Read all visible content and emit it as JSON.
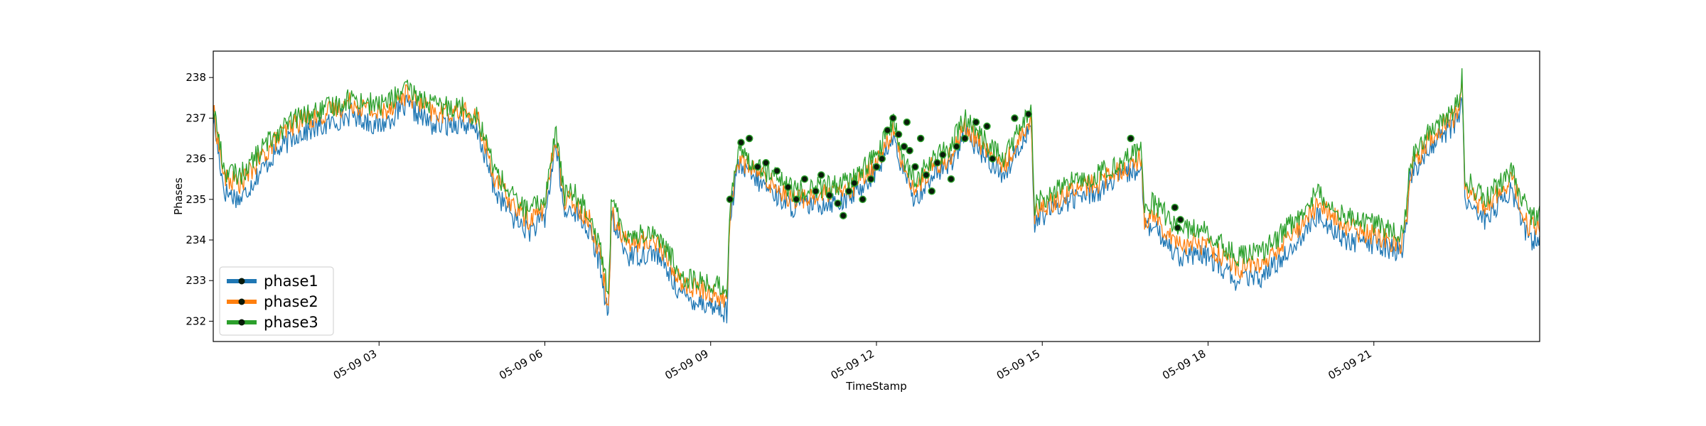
{
  "chart_data": {
    "type": "line",
    "title": "",
    "xlabel": "TimeStamp",
    "ylabel": "Phases",
    "ylim": [
      231.5,
      238.65
    ],
    "xlim_hours": [
      0,
      24
    ],
    "x_tick_hours": [
      3,
      6,
      9,
      12,
      15,
      18,
      21
    ],
    "x_tick_labels": [
      "05-09 03",
      "05-09 06",
      "05-09 09",
      "05-09 12",
      "05-09 15",
      "05-09 18",
      "05-09 21"
    ],
    "y_ticks": [
      232,
      233,
      234,
      235,
      236,
      237,
      238
    ],
    "grid": false,
    "legend_position": "lower-left",
    "x_unit": "hour of day (05-09)",
    "series": [
      {
        "name": "phase1",
        "color": "#1f77b4",
        "x": [
          0,
          0.2,
          0.5,
          0.8,
          1.1,
          1.5,
          2.0,
          2.5,
          3.0,
          3.5,
          4.0,
          4.5,
          4.8,
          5.1,
          5.4,
          5.7,
          6.0,
          6.2,
          6.35,
          6.5,
          6.8,
          7.0,
          7.1,
          7.15,
          7.2,
          7.5,
          8.0,
          8.5,
          9.0,
          9.3,
          9.35,
          9.5,
          10.0,
          10.5,
          11.0,
          11.5,
          12.0,
          12.3,
          12.5,
          12.7,
          13.0,
          13.3,
          13.6,
          14.0,
          14.3,
          14.7,
          14.8,
          14.85,
          15.0,
          15.5,
          16.0,
          16.5,
          16.8,
          16.85,
          17.0,
          17.5,
          18.0,
          18.5,
          19.0,
          19.5,
          20.0,
          20.5,
          21.0,
          21.5,
          21.6,
          21.65,
          22.0,
          22.5,
          22.6,
          22.65,
          23.0,
          23.5,
          23.8,
          24.0
        ],
        "y": [
          237.0,
          235.2,
          235.0,
          235.6,
          236.1,
          236.6,
          236.8,
          237.1,
          236.8,
          237.3,
          236.8,
          236.9,
          236.6,
          235.2,
          234.6,
          234.2,
          234.5,
          236.4,
          234.6,
          234.8,
          234.2,
          233.4,
          232.5,
          232.0,
          234.5,
          233.6,
          233.7,
          232.6,
          232.4,
          232.2,
          234.6,
          235.8,
          235.3,
          234.8,
          234.9,
          235.0,
          235.7,
          236.5,
          235.6,
          235.0,
          235.6,
          235.8,
          236.6,
          236.0,
          235.6,
          236.6,
          236.9,
          234.4,
          234.6,
          235.0,
          235.2,
          235.6,
          235.8,
          234.3,
          234.3,
          233.6,
          233.6,
          233.0,
          233.1,
          233.8,
          234.6,
          234.0,
          233.9,
          233.7,
          234.5,
          235.5,
          236.3,
          236.9,
          237.5,
          235.0,
          234.5,
          235.2,
          234.0,
          234.0
        ]
      },
      {
        "name": "phase2",
        "color": "#ff7f0e",
        "x": [
          0,
          0.2,
          0.5,
          0.8,
          1.1,
          1.5,
          2.0,
          2.5,
          3.0,
          3.5,
          4.0,
          4.5,
          4.8,
          5.1,
          5.4,
          5.7,
          6.0,
          6.2,
          6.35,
          6.5,
          6.8,
          7.0,
          7.1,
          7.15,
          7.2,
          7.5,
          8.0,
          8.5,
          9.0,
          9.3,
          9.35,
          9.5,
          10.0,
          10.5,
          11.0,
          11.5,
          12.0,
          12.3,
          12.5,
          12.7,
          13.0,
          13.3,
          13.6,
          14.0,
          14.3,
          14.7,
          14.8,
          14.85,
          15.0,
          15.5,
          16.0,
          16.5,
          16.8,
          16.85,
          17.0,
          17.5,
          18.0,
          18.5,
          19.0,
          19.5,
          20.0,
          20.5,
          21.0,
          21.5,
          21.6,
          21.65,
          22.0,
          22.5,
          22.6,
          22.65,
          23.0,
          23.5,
          23.8,
          24.0
        ],
        "y": [
          237.2,
          235.5,
          235.4,
          235.9,
          236.4,
          236.9,
          237.1,
          237.4,
          237.1,
          237.6,
          237.1,
          237.2,
          236.9,
          235.5,
          234.9,
          234.5,
          234.8,
          236.6,
          234.9,
          235.0,
          234.5,
          233.7,
          232.8,
          232.2,
          234.7,
          233.9,
          234.0,
          232.9,
          232.7,
          232.5,
          234.8,
          236.0,
          235.5,
          235.0,
          235.1,
          235.2,
          235.9,
          236.7,
          235.8,
          235.2,
          235.8,
          236.0,
          236.8,
          236.2,
          235.8,
          236.8,
          237.1,
          234.6,
          234.8,
          235.2,
          235.4,
          235.8,
          236.0,
          234.5,
          234.6,
          233.9,
          233.9,
          233.3,
          233.4,
          234.1,
          234.9,
          234.3,
          234.1,
          233.9,
          234.7,
          235.7,
          236.5,
          237.1,
          237.9,
          235.2,
          234.8,
          235.5,
          234.3,
          234.3
        ]
      },
      {
        "name": "phase3",
        "color": "#2ca02c",
        "x": [
          0,
          0.2,
          0.5,
          0.8,
          1.1,
          1.5,
          2.0,
          2.5,
          3.0,
          3.5,
          4.0,
          4.5,
          4.8,
          5.1,
          5.4,
          5.7,
          6.0,
          6.2,
          6.35,
          6.5,
          6.8,
          7.0,
          7.1,
          7.15,
          7.2,
          7.5,
          8.0,
          8.5,
          9.0,
          9.3,
          9.35,
          9.5,
          10.0,
          10.5,
          11.0,
          11.5,
          12.0,
          12.3,
          12.5,
          12.7,
          13.0,
          13.3,
          13.6,
          14.0,
          14.3,
          14.7,
          14.8,
          14.85,
          15.0,
          15.5,
          16.0,
          16.5,
          16.8,
          16.85,
          17.0,
          17.5,
          18.0,
          18.5,
          19.0,
          19.5,
          20.0,
          20.5,
          21.0,
          21.5,
          21.6,
          21.65,
          22.0,
          22.5,
          22.6,
          22.65,
          23.0,
          23.5,
          23.8,
          24.0
        ],
        "y": [
          237.3,
          235.7,
          235.6,
          236.1,
          236.6,
          237.0,
          237.2,
          237.5,
          237.3,
          237.7,
          237.3,
          237.3,
          237.0,
          235.7,
          235.1,
          234.7,
          235.0,
          236.7,
          235.1,
          235.2,
          234.7,
          233.9,
          233.0,
          232.5,
          234.9,
          234.1,
          234.2,
          233.1,
          232.9,
          232.8,
          235.0,
          236.2,
          235.7,
          235.2,
          235.3,
          235.4,
          236.1,
          236.9,
          236.0,
          235.4,
          236.0,
          236.2,
          237.0,
          236.4,
          236.0,
          237.0,
          237.3,
          234.8,
          235.0,
          235.4,
          235.6,
          236.0,
          236.2,
          234.8,
          234.9,
          234.3,
          234.2,
          233.6,
          233.7,
          234.4,
          235.2,
          234.6,
          234.4,
          234.2,
          234.9,
          235.9,
          236.7,
          237.3,
          238.0,
          235.5,
          235.0,
          235.7,
          234.6,
          234.6
        ]
      }
    ],
    "markers": {
      "fill": "#0a1a0a",
      "edge": "#2ca02c",
      "points": [
        [
          9.35,
          235.0
        ],
        [
          9.55,
          236.4
        ],
        [
          9.7,
          236.5
        ],
        [
          9.85,
          235.8
        ],
        [
          10.0,
          235.9
        ],
        [
          10.2,
          235.7
        ],
        [
          10.4,
          235.3
        ],
        [
          10.55,
          235.0
        ],
        [
          10.7,
          235.5
        ],
        [
          10.9,
          235.2
        ],
        [
          11.0,
          235.6
        ],
        [
          11.15,
          235.1
        ],
        [
          11.3,
          234.9
        ],
        [
          11.4,
          234.6
        ],
        [
          11.5,
          235.2
        ],
        [
          11.6,
          235.4
        ],
        [
          11.75,
          235.0
        ],
        [
          11.9,
          235.5
        ],
        [
          12.0,
          235.8
        ],
        [
          12.1,
          236.0
        ],
        [
          12.2,
          236.7
        ],
        [
          12.3,
          237.0
        ],
        [
          12.4,
          236.6
        ],
        [
          12.5,
          236.3
        ],
        [
          12.55,
          236.9
        ],
        [
          12.6,
          236.2
        ],
        [
          12.7,
          235.8
        ],
        [
          12.8,
          236.5
        ],
        [
          12.9,
          235.6
        ],
        [
          13.0,
          235.2
        ],
        [
          13.1,
          235.9
        ],
        [
          13.2,
          236.1
        ],
        [
          13.35,
          235.5
        ],
        [
          13.45,
          236.3
        ],
        [
          13.6,
          236.5
        ],
        [
          13.8,
          236.9
        ],
        [
          14.0,
          236.8
        ],
        [
          14.1,
          236.0
        ],
        [
          14.5,
          237.0
        ],
        [
          14.75,
          237.1
        ],
        [
          16.6,
          236.5
        ],
        [
          17.4,
          234.8
        ],
        [
          17.5,
          234.5
        ],
        [
          17.45,
          234.3
        ]
      ]
    }
  }
}
